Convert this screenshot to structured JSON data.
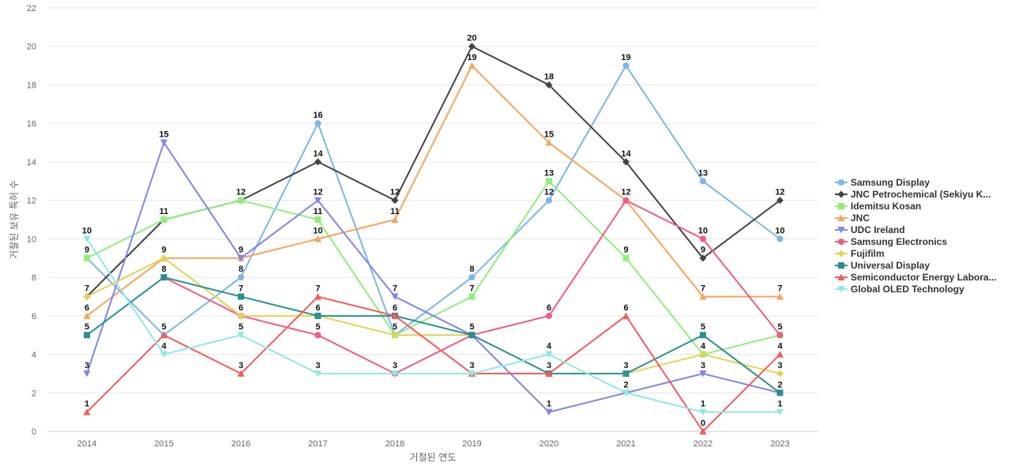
{
  "chart_data": {
    "type": "line",
    "title": "",
    "xlabel": "거절된 연도",
    "ylabel": "거절된 보유 특허 수",
    "x": [
      "2014",
      "2015",
      "2016",
      "2017",
      "2018",
      "2019",
      "2020",
      "2021",
      "2022",
      "2023"
    ],
    "ylim": [
      0,
      22
    ],
    "yticks": [
      0,
      2,
      4,
      6,
      8,
      10,
      12,
      14,
      16,
      18,
      20,
      22
    ],
    "grid": true,
    "legend_position": "right",
    "series": [
      {
        "name": "Samsung Display",
        "color": "#7cb5ec",
        "marker": "circle",
        "values": [
          9,
          5,
          8,
          16,
          5,
          8,
          12,
          19,
          13,
          10
        ]
      },
      {
        "name": "JNC Petrochemical (Sekiyu K...",
        "color": "#434348",
        "marker": "diamond",
        "values": [
          7,
          11,
          12,
          14,
          12,
          20,
          18,
          14,
          9,
          12
        ]
      },
      {
        "name": "Idemitsu Kosan",
        "color": "#90ed7d",
        "marker": "square",
        "values": [
          9,
          11,
          12,
          11,
          5,
          7,
          13,
          9,
          4,
          5
        ]
      },
      {
        "name": "JNC",
        "color": "#f7a35c",
        "marker": "triangle",
        "values": [
          6,
          9,
          9,
          10,
          11,
          19,
          15,
          12,
          7,
          7
        ]
      },
      {
        "name": "UDC Ireland",
        "color": "#8085e9",
        "marker": "triangle-down",
        "values": [
          3,
          15,
          9,
          12,
          7,
          5,
          1,
          2,
          3,
          2
        ]
      },
      {
        "name": "Samsung Electronics",
        "color": "#f15c80",
        "marker": "circle",
        "values": [
          null,
          8,
          6,
          5,
          3,
          5,
          6,
          12,
          10,
          5
        ]
      },
      {
        "name": "Fujifilm",
        "color": "#e4d354",
        "marker": "diamond",
        "values": [
          7,
          9,
          6,
          6,
          5,
          5,
          null,
          3,
          4,
          3
        ]
      },
      {
        "name": "Universal Display",
        "color": "#2b908f",
        "marker": "square",
        "values": [
          5,
          8,
          7,
          6,
          6,
          5,
          3,
          3,
          5,
          2
        ]
      },
      {
        "name": "Semiconductor Energy Labora...",
        "color": "#f45b5b",
        "marker": "triangle",
        "values": [
          1,
          5,
          3,
          7,
          6,
          3,
          3,
          6,
          0,
          4
        ]
      },
      {
        "name": "Global OLED Technology",
        "color": "#91e8e1",
        "marker": "triangle-down",
        "values": [
          10,
          4,
          5,
          3,
          3,
          3,
          4,
          2,
          1,
          1
        ]
      }
    ],
    "data_labels": [
      {
        "x": "2014",
        "text": "10",
        "anchor_value": 10
      },
      {
        "x": "2014",
        "text": "9",
        "anchor_value": 9
      },
      {
        "x": "2014",
        "text": "7",
        "anchor_value": 7
      },
      {
        "x": "2014",
        "text": "6",
        "anchor_value": 6
      },
      {
        "x": "2014",
        "text": "5",
        "anchor_value": 5
      },
      {
        "x": "2014",
        "text": "3",
        "anchor_value": 3
      },
      {
        "x": "2014",
        "text": "1",
        "anchor_value": 1
      },
      {
        "x": "2015",
        "text": "15",
        "anchor_value": 15
      },
      {
        "x": "2015",
        "text": "11",
        "anchor_value": 11
      },
      {
        "x": "2015",
        "text": "9",
        "anchor_value": 9
      },
      {
        "x": "2015",
        "text": "8",
        "anchor_value": 8
      },
      {
        "x": "2015",
        "text": "5",
        "anchor_value": 5
      },
      {
        "x": "2015",
        "text": "4",
        "anchor_value": 4
      },
      {
        "x": "2016",
        "text": "12",
        "anchor_value": 12
      },
      {
        "x": "2016",
        "text": "9",
        "anchor_value": 9
      },
      {
        "x": "2016",
        "text": "8",
        "anchor_value": 8
      },
      {
        "x": "2016",
        "text": "7",
        "anchor_value": 7
      },
      {
        "x": "2016",
        "text": "6",
        "anchor_value": 6
      },
      {
        "x": "2016",
        "text": "5",
        "anchor_value": 5
      },
      {
        "x": "2016",
        "text": "3",
        "anchor_value": 3
      },
      {
        "x": "2017",
        "text": "16",
        "anchor_value": 16
      },
      {
        "x": "2017",
        "text": "14",
        "anchor_value": 14
      },
      {
        "x": "2017",
        "text": "12",
        "anchor_value": 12
      },
      {
        "x": "2017",
        "text": "11",
        "anchor_value": 11
      },
      {
        "x": "2017",
        "text": "10",
        "anchor_value": 10
      },
      {
        "x": "2017",
        "text": "7",
        "anchor_value": 7
      },
      {
        "x": "2017",
        "text": "6",
        "anchor_value": 6
      },
      {
        "x": "2017",
        "text": "5",
        "anchor_value": 5
      },
      {
        "x": "2017",
        "text": "3",
        "anchor_value": 3
      },
      {
        "x": "2018",
        "text": "12",
        "anchor_value": 12
      },
      {
        "x": "2018",
        "text": "11",
        "anchor_value": 11
      },
      {
        "x": "2018",
        "text": "7",
        "anchor_value": 7
      },
      {
        "x": "2018",
        "text": "6",
        "anchor_value": 6
      },
      {
        "x": "2018",
        "text": "5",
        "anchor_value": 5
      },
      {
        "x": "2018",
        "text": "3",
        "anchor_value": 3
      },
      {
        "x": "2019",
        "text": "20",
        "anchor_value": 20
      },
      {
        "x": "2019",
        "text": "19",
        "anchor_value": 19
      },
      {
        "x": "2019",
        "text": "8",
        "anchor_value": 8
      },
      {
        "x": "2019",
        "text": "7",
        "anchor_value": 7
      },
      {
        "x": "2019",
        "text": "5",
        "anchor_value": 5
      },
      {
        "x": "2019",
        "text": "3",
        "anchor_value": 3
      },
      {
        "x": "2020",
        "text": "18",
        "anchor_value": 18
      },
      {
        "x": "2020",
        "text": "15",
        "anchor_value": 15
      },
      {
        "x": "2020",
        "text": "13",
        "anchor_value": 13
      },
      {
        "x": "2020",
        "text": "12",
        "anchor_value": 12
      },
      {
        "x": "2020",
        "text": "6",
        "anchor_value": 6
      },
      {
        "x": "2020",
        "text": "4",
        "anchor_value": 4
      },
      {
        "x": "2020",
        "text": "3",
        "anchor_value": 3
      },
      {
        "x": "2020",
        "text": "1",
        "anchor_value": 1
      },
      {
        "x": "2021",
        "text": "19",
        "anchor_value": 19
      },
      {
        "x": "2021",
        "text": "14",
        "anchor_value": 14
      },
      {
        "x": "2021",
        "text": "12",
        "anchor_value": 12
      },
      {
        "x": "2021",
        "text": "9",
        "anchor_value": 9
      },
      {
        "x": "2021",
        "text": "6",
        "anchor_value": 6
      },
      {
        "x": "2021",
        "text": "3",
        "anchor_value": 3
      },
      {
        "x": "2021",
        "text": "2",
        "anchor_value": 2
      },
      {
        "x": "2022",
        "text": "13",
        "anchor_value": 13
      },
      {
        "x": "2022",
        "text": "10",
        "anchor_value": 10
      },
      {
        "x": "2022",
        "text": "9",
        "anchor_value": 9
      },
      {
        "x": "2022",
        "text": "7",
        "anchor_value": 7
      },
      {
        "x": "2022",
        "text": "5",
        "anchor_value": 5
      },
      {
        "x": "2022",
        "text": "4",
        "anchor_value": 4
      },
      {
        "x": "2022",
        "text": "3",
        "anchor_value": 3
      },
      {
        "x": "2022",
        "text": "1",
        "anchor_value": 1
      },
      {
        "x": "2022",
        "text": "0",
        "anchor_value": 0
      },
      {
        "x": "2023",
        "text": "12",
        "anchor_value": 12
      },
      {
        "x": "2023",
        "text": "10",
        "anchor_value": 10
      },
      {
        "x": "2023",
        "text": "7",
        "anchor_value": 7
      },
      {
        "x": "2023",
        "text": "5",
        "anchor_value": 5
      },
      {
        "x": "2023",
        "text": "4",
        "anchor_value": 4
      },
      {
        "x": "2023",
        "text": "3",
        "anchor_value": 3
      },
      {
        "x": "2023",
        "text": "2",
        "anchor_value": 2
      },
      {
        "x": "2023",
        "text": "1",
        "anchor_value": 1
      }
    ]
  }
}
